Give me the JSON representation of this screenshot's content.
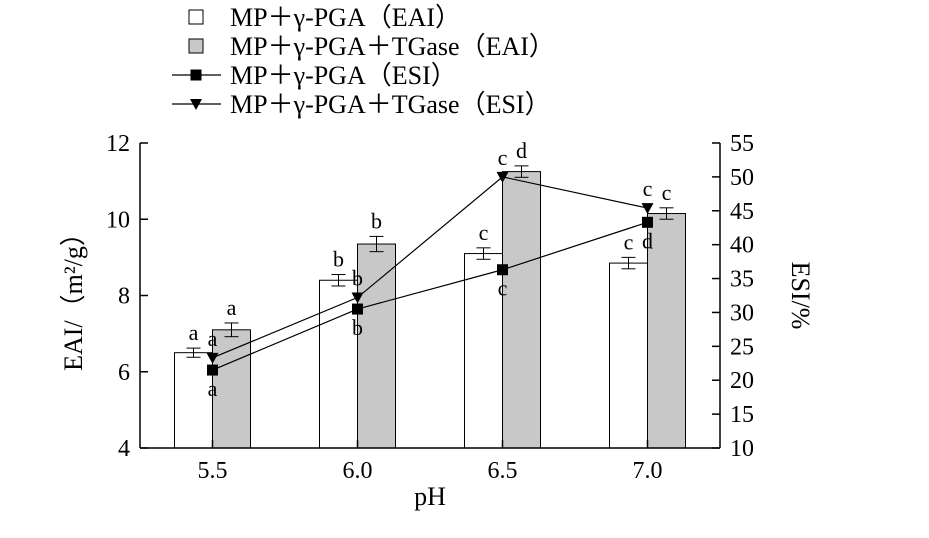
{
  "chart_data": {
    "type": "bar",
    "categories": [
      "5.5",
      "6.0",
      "6.5",
      "7.0"
    ],
    "xlabel": "pH",
    "ylabel_left": "EAI/（m²/g）",
    "ylabel_right": "ESI/%",
    "ylim_left": [
      4,
      12
    ],
    "ylim_right": [
      10,
      55
    ],
    "yticks_left": [
      "4",
      "6",
      "8",
      "10",
      "12"
    ],
    "yticks_right": [
      "10",
      "15",
      "20",
      "25",
      "30",
      "35",
      "40",
      "45",
      "50",
      "55"
    ],
    "grid": false,
    "legend_position": "top-left",
    "bar_series": [
      {
        "name": "MP＋γ-PGA（EAI）",
        "color": "#ffffff",
        "values": [
          6.5,
          8.4,
          9.1,
          8.85
        ],
        "errors": [
          0.12,
          0.15,
          0.15,
          0.15
        ],
        "labels": [
          "a",
          "b",
          "c",
          "c"
        ]
      },
      {
        "name": "MP＋γ-PGA＋TGase（EAI）",
        "color": "#c8c8c8",
        "values": [
          7.1,
          9.35,
          11.25,
          10.15
        ],
        "errors": [
          0.18,
          0.2,
          0.15,
          0.15
        ],
        "labels": [
          "a",
          "b",
          "d",
          "c"
        ]
      }
    ],
    "line_series": [
      {
        "name": "MP＋γ-PGA（ESI）",
        "marker": "square",
        "values": [
          21.5,
          30.5,
          36.3,
          43.3
        ],
        "labels": [
          "a",
          "b",
          "c",
          "d"
        ]
      },
      {
        "name": "MP＋γ-PGA＋TGase（ESI）",
        "marker": "triangle-down",
        "values": [
          23.3,
          32.2,
          50.0,
          45.4
        ],
        "labels": [
          "a",
          "b",
          "c",
          "c"
        ]
      }
    ]
  }
}
